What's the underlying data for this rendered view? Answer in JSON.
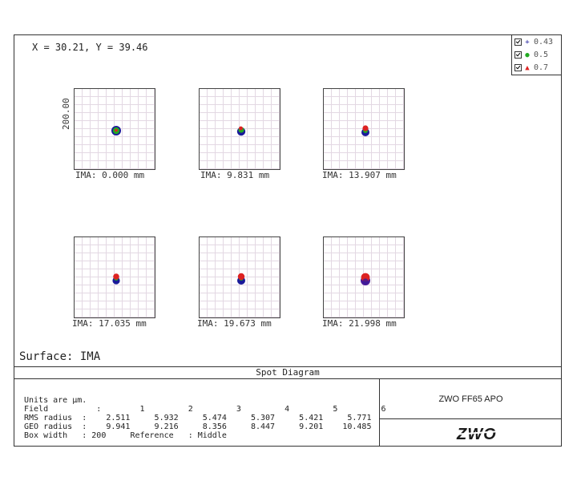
{
  "coordinate_readout": "X = 30.21, Y = 39.46",
  "legend": [
    {
      "symbol": "+",
      "label": "0.43",
      "color": "#1a1a9a"
    },
    {
      "symbol": "●",
      "label": "0.5",
      "color": "#22aa22"
    },
    {
      "symbol": "▲",
      "label": "0.7",
      "color": "#dd2222"
    }
  ],
  "y_axis_label": "200.00",
  "fields": [
    {
      "label": "IMA: 0.000 mm"
    },
    {
      "label": "IMA: 9.831 mm"
    },
    {
      "label": "IMA: 13.907 mm"
    },
    {
      "label": "IMA: 17.035 mm"
    },
    {
      "label": "IMA: 19.673 mm"
    },
    {
      "label": "IMA: 21.998 mm"
    }
  ],
  "surface": "Surface: IMA",
  "title": "Spot Diagram",
  "info": {
    "units": "Units are µm.",
    "field_row": "Field          :        1         2         3         4         5         6",
    "rms_row": "RMS radius  :    2.511     5.932     5.474     5.307     5.421     5.771",
    "geo_row": "GEO radius  :    9.941     9.216     8.356     8.447     9.201    10.485",
    "box_row": "Box width   : 200     Reference   : Middle"
  },
  "model": "ZWO FF65 APO",
  "logo": "ZWO",
  "colors": {
    "blue": "#1a1a9a",
    "green": "#22aa22",
    "red": "#dd2222",
    "cyan": "#2a8aa0"
  }
}
